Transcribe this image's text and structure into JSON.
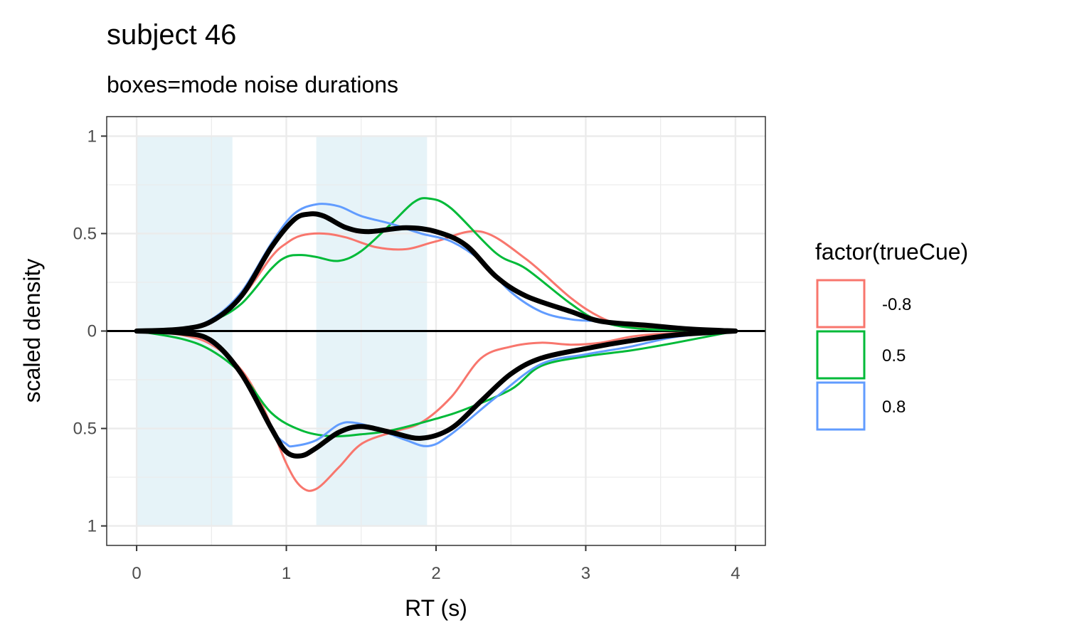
{
  "chart_data": {
    "type": "line",
    "title": "subject 46",
    "subtitle": "boxes=mode noise durations",
    "xlabel": "RT (s)",
    "ylabel": "scaled density",
    "xlim": [
      -0.2,
      4.2
    ],
    "ylim": [
      -1.1,
      1.1
    ],
    "x_ticks": [
      0,
      1,
      2,
      3,
      4
    ],
    "x_tick_labels": [
      "0",
      "1",
      "2",
      "3",
      "4"
    ],
    "y_ticks": [
      1,
      0.5,
      0,
      -0.5,
      -1
    ],
    "y_tick_labels": [
      "1",
      "0.5",
      "0",
      "0.5",
      "1"
    ],
    "grid": true,
    "zero_line": true,
    "shaded_boxes": [
      {
        "xmin": 0.0,
        "xmax": 0.64,
        "ymin": -1,
        "ymax": 1
      },
      {
        "xmin": 1.2,
        "xmax": 1.94,
        "ymin": -1,
        "ymax": 1
      }
    ],
    "legend": {
      "title": "factor(trueCue)",
      "position": "right",
      "entries": [
        {
          "label": "-0.8",
          "color": "#f8766d"
        },
        {
          "label": "0.5",
          "color": "#00ba38"
        },
        {
          "label": "0.8",
          "color": "#619cff"
        }
      ]
    },
    "series": [
      {
        "name": "-0.8",
        "color": "#f8766d",
        "part": "upper",
        "x": [
          0,
          0.3,
          0.5,
          0.7,
          0.9,
          1.0,
          1.1,
          1.25,
          1.4,
          1.6,
          1.8,
          2.0,
          2.3,
          2.6,
          2.9,
          3.1,
          3.3,
          3.6,
          4.0
        ],
        "y": [
          0,
          0.01,
          0.05,
          0.17,
          0.38,
          0.45,
          0.49,
          0.5,
          0.48,
          0.43,
          0.42,
          0.46,
          0.51,
          0.37,
          0.17,
          0.07,
          0.02,
          0.01,
          0
        ]
      },
      {
        "name": "0.5",
        "color": "#00ba38",
        "part": "upper",
        "x": [
          0,
          0.3,
          0.5,
          0.7,
          0.9,
          1.0,
          1.1,
          1.2,
          1.35,
          1.5,
          1.7,
          1.85,
          1.95,
          2.1,
          2.4,
          2.6,
          2.9,
          3.1,
          3.4,
          4.0
        ],
        "y": [
          0,
          0.01,
          0.05,
          0.14,
          0.32,
          0.38,
          0.39,
          0.38,
          0.36,
          0.41,
          0.55,
          0.66,
          0.68,
          0.63,
          0.4,
          0.32,
          0.14,
          0.05,
          0.01,
          0
        ]
      },
      {
        "name": "0.8",
        "color": "#619cff",
        "part": "upper",
        "x": [
          0,
          0.3,
          0.5,
          0.7,
          0.9,
          1.05,
          1.2,
          1.35,
          1.5,
          1.7,
          1.9,
          2.1,
          2.3,
          2.5,
          2.7,
          2.9,
          3.1,
          3.3,
          3.6,
          4.0
        ],
        "y": [
          0,
          0.01,
          0.06,
          0.2,
          0.45,
          0.6,
          0.65,
          0.64,
          0.59,
          0.55,
          0.5,
          0.46,
          0.36,
          0.2,
          0.1,
          0.06,
          0.05,
          0.04,
          0.02,
          0
        ]
      },
      {
        "name": "",
        "color": "#000000",
        "part": "upper",
        "thick": true,
        "x": [
          0,
          0.3,
          0.5,
          0.7,
          0.9,
          1.05,
          1.15,
          1.25,
          1.4,
          1.55,
          1.8,
          2.0,
          2.2,
          2.4,
          2.6,
          2.9,
          3.1,
          3.4,
          3.7,
          4.0
        ],
        "y": [
          0,
          0.01,
          0.05,
          0.18,
          0.43,
          0.57,
          0.6,
          0.59,
          0.53,
          0.51,
          0.53,
          0.51,
          0.44,
          0.28,
          0.18,
          0.1,
          0.05,
          0.03,
          0.01,
          0
        ]
      },
      {
        "name": "-0.8",
        "color": "#f8766d",
        "part": "lower",
        "x": [
          0,
          0.3,
          0.5,
          0.7,
          0.85,
          1.0,
          1.1,
          1.2,
          1.35,
          1.5,
          1.7,
          1.9,
          2.1,
          2.3,
          2.5,
          2.7,
          2.9,
          3.1,
          3.4,
          4.0
        ],
        "y": [
          0,
          -0.02,
          -0.07,
          -0.2,
          -0.4,
          -0.68,
          -0.8,
          -0.81,
          -0.7,
          -0.58,
          -0.52,
          -0.47,
          -0.34,
          -0.14,
          -0.08,
          -0.06,
          -0.07,
          -0.06,
          -0.02,
          0
        ]
      },
      {
        "name": "0.5",
        "color": "#00ba38",
        "part": "lower",
        "x": [
          0,
          0.3,
          0.5,
          0.7,
          0.9,
          1.1,
          1.3,
          1.5,
          1.7,
          2.0,
          2.2,
          2.5,
          2.7,
          3.0,
          3.3,
          3.6,
          4.0
        ],
        "y": [
          0,
          -0.04,
          -0.1,
          -0.22,
          -0.42,
          -0.51,
          -0.54,
          -0.53,
          -0.51,
          -0.45,
          -0.4,
          -0.3,
          -0.18,
          -0.13,
          -0.1,
          -0.06,
          0
        ]
      },
      {
        "name": "0.8",
        "color": "#619cff",
        "part": "lower",
        "x": [
          0,
          0.3,
          0.5,
          0.7,
          0.9,
          1.0,
          1.05,
          1.2,
          1.35,
          1.45,
          1.6,
          1.8,
          1.95,
          2.1,
          2.4,
          2.7,
          3.0,
          3.3,
          3.6,
          4.0
        ],
        "y": [
          0,
          -0.01,
          -0.06,
          -0.22,
          -0.5,
          -0.58,
          -0.59,
          -0.56,
          -0.48,
          -0.47,
          -0.5,
          -0.56,
          -0.59,
          -0.53,
          -0.34,
          -0.17,
          -0.12,
          -0.08,
          -0.03,
          0
        ]
      },
      {
        "name": "",
        "color": "#000000",
        "part": "lower",
        "thick": true,
        "x": [
          0,
          0.3,
          0.5,
          0.7,
          0.9,
          1.0,
          1.1,
          1.2,
          1.35,
          1.5,
          1.7,
          1.9,
          2.1,
          2.3,
          2.5,
          2.7,
          3.0,
          3.3,
          3.6,
          4.0
        ],
        "y": [
          0,
          -0.01,
          -0.05,
          -0.22,
          -0.5,
          -0.62,
          -0.64,
          -0.6,
          -0.52,
          -0.49,
          -0.52,
          -0.55,
          -0.5,
          -0.36,
          -0.22,
          -0.14,
          -0.09,
          -0.05,
          -0.02,
          0
        ]
      }
    ]
  }
}
